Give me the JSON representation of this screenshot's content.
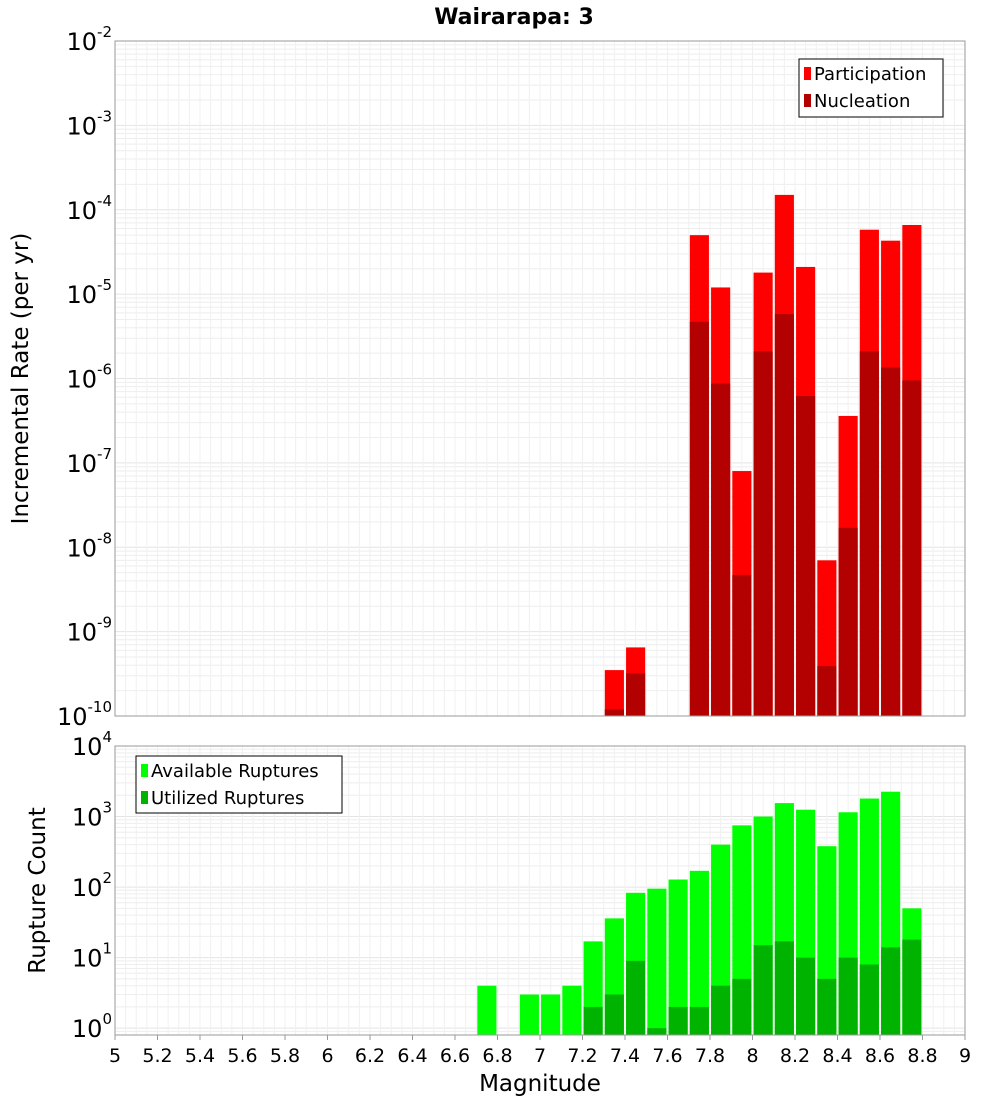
{
  "chart_data": {
    "type": "bar",
    "title": "Wairarapa: 3",
    "x_axis": {
      "label": "Magnitude",
      "range": [
        5,
        9
      ],
      "ticks": [
        "5",
        "5.2",
        "5.4",
        "5.6",
        "5.8",
        "6",
        "6.2",
        "6.4",
        "6.6",
        "6.8",
        "7",
        "7.2",
        "7.4",
        "7.6",
        "7.8",
        "8",
        "8.2",
        "8.4",
        "8.6",
        "8.8",
        "9"
      ]
    },
    "panels": [
      {
        "id": "rate",
        "ylabel": "Incremental Rate (per yr)",
        "yscale": "log",
        "ylim": [
          1e-10,
          0.01
        ],
        "ytick_exponents": [
          -10,
          -9,
          -8,
          -7,
          -6,
          -5,
          -4,
          -3,
          -2
        ],
        "grid": true,
        "legend_position": "top-right",
        "series": [
          {
            "name": "Participation",
            "color": "#ff0000",
            "x": [
              7.35,
              7.45,
              7.75,
              7.85,
              7.95,
              8.05,
              8.15,
              8.25,
              8.35,
              8.45,
              8.55,
              8.65,
              8.75
            ],
            "values": [
              3.5e-10,
              6.5e-10,
              5e-05,
              1.2e-05,
              8e-08,
              1.8e-05,
              0.00015,
              2.1e-05,
              7e-09,
              3.6e-07,
              5.8e-05,
              4.3e-05,
              6.6e-05
            ]
          },
          {
            "name": "Nucleation",
            "color": "#b30000",
            "x": [
              7.35,
              7.45,
              7.75,
              7.85,
              7.95,
              8.05,
              8.15,
              8.25,
              8.35,
              8.45,
              8.55,
              8.65,
              8.75
            ],
            "values": [
              1.2e-10,
              3.2e-10,
              4.7e-06,
              8.7e-07,
              4.7e-09,
              2.1e-06,
              5.8e-06,
              6.2e-07,
              3.9e-10,
              1.7e-08,
              2.1e-06,
              1.35e-06,
              9.5e-07
            ]
          }
        ]
      },
      {
        "id": "count",
        "ylabel": "Rupture Count",
        "yscale": "log",
        "ylim": [
          0.8,
          10000
        ],
        "ytick_exponents": [
          0,
          1,
          2,
          3,
          4
        ],
        "grid": true,
        "legend_position": "top-left",
        "series": [
          {
            "name": "Available Ruptures",
            "color": "#00ff00",
            "x": [
              6.75,
              6.95,
              7.05,
              7.15,
              7.25,
              7.35,
              7.45,
              7.55,
              7.65,
              7.75,
              7.85,
              7.95,
              8.05,
              8.15,
              8.25,
              8.35,
              8.45,
              8.55,
              8.65,
              8.75
            ],
            "values": [
              4,
              3,
              3,
              4,
              17,
              36,
              83,
              95,
              128,
              170,
              400,
              750,
              1000,
              1550,
              1250,
              380,
              1150,
              1800,
              2250,
              50
            ]
          },
          {
            "name": "Utilized Ruptures",
            "color": "#00b300",
            "x": [
              7.25,
              7.35,
              7.45,
              7.55,
              7.65,
              7.75,
              7.85,
              7.95,
              8.05,
              8.15,
              8.25,
              8.35,
              8.45,
              8.55,
              8.65,
              8.75
            ],
            "values": [
              2,
              3,
              9,
              1,
              2,
              2,
              4,
              5,
              15,
              17,
              10,
              5,
              10,
              8,
              14,
              18
            ]
          }
        ]
      }
    ]
  }
}
